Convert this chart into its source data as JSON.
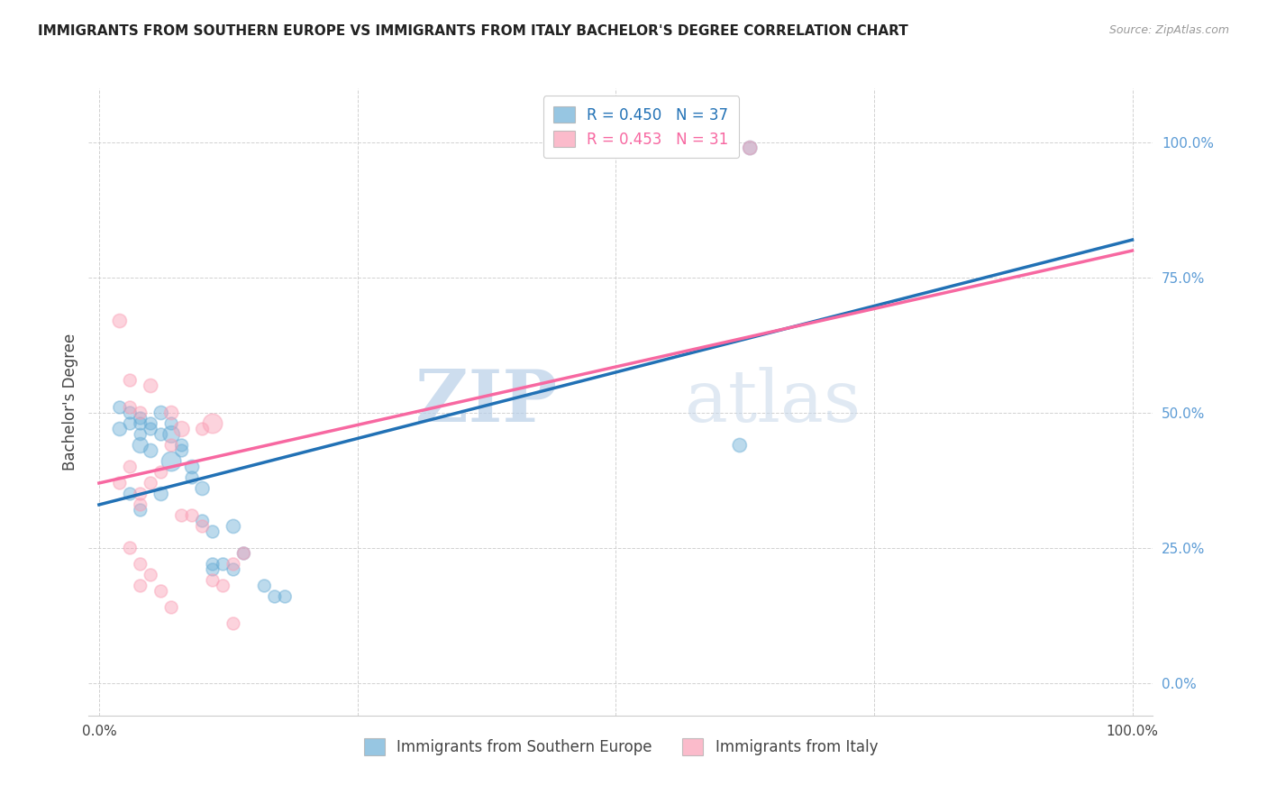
{
  "title": "IMMIGRANTS FROM SOUTHERN EUROPE VS IMMIGRANTS FROM ITALY BACHELOR'S DEGREE CORRELATION CHART",
  "source": "Source: ZipAtlas.com",
  "ylabel": "Bachelor's Degree",
  "ytick_labels": [
    "0.0%",
    "25.0%",
    "50.0%",
    "75.0%",
    "100.0%"
  ],
  "ytick_values": [
    0,
    25,
    50,
    75,
    100
  ],
  "xtick_values": [
    0,
    25,
    50,
    75,
    100
  ],
  "blue_color": "#6baed6",
  "pink_color": "#fa9fb5",
  "blue_line_color": "#2171b5",
  "pink_line_color": "#f768a1",
  "legend_blue_label": "Immigrants from Southern Europe",
  "legend_pink_label": "Immigrants from Italy",
  "watermark_zip": "ZIP",
  "watermark_atlas": "atlas",
  "blue_scatter_x": [
    2,
    5,
    4,
    6,
    4,
    8,
    7,
    5,
    6,
    7,
    9,
    10,
    11,
    13,
    12,
    11,
    13,
    14,
    16,
    17,
    18,
    2,
    3,
    3,
    4,
    4,
    5,
    6,
    7,
    8,
    9,
    10,
    11,
    62,
    63,
    3,
    4
  ],
  "blue_scatter_y": [
    47,
    48,
    46,
    50,
    44,
    44,
    46,
    43,
    35,
    41,
    40,
    36,
    28,
    29,
    22,
    22,
    21,
    24,
    18,
    16,
    16,
    51,
    50,
    48,
    49,
    48,
    47,
    46,
    48,
    43,
    38,
    30,
    21,
    44,
    99,
    35,
    32
  ],
  "blue_scatter_size": [
    120,
    100,
    90,
    120,
    150,
    100,
    180,
    120,
    120,
    240,
    120,
    120,
    100,
    120,
    100,
    100,
    100,
    100,
    100,
    100,
    100,
    100,
    100,
    100,
    100,
    100,
    100,
    100,
    100,
    100,
    100,
    100,
    100,
    120,
    120,
    100,
    100
  ],
  "pink_scatter_x": [
    2,
    3,
    5,
    7,
    8,
    10,
    11,
    13,
    14,
    2,
    3,
    4,
    4,
    5,
    6,
    7,
    8,
    9,
    10,
    11,
    12,
    13,
    3,
    4,
    5,
    4,
    6,
    7,
    63,
    3,
    4
  ],
  "pink_scatter_y": [
    67,
    56,
    55,
    50,
    47,
    47,
    48,
    22,
    24,
    37,
    40,
    35,
    33,
    37,
    39,
    44,
    31,
    31,
    29,
    19,
    18,
    11,
    25,
    22,
    20,
    18,
    17,
    14,
    99,
    51,
    50
  ],
  "pink_scatter_size": [
    120,
    100,
    120,
    120,
    150,
    100,
    240,
    100,
    100,
    100,
    100,
    100,
    100,
    100,
    100,
    100,
    100,
    100,
    100,
    100,
    100,
    100,
    100,
    100,
    100,
    100,
    100,
    100,
    120,
    100,
    100
  ],
  "blue_line_x": [
    0,
    100
  ],
  "blue_line_y": [
    33,
    82
  ],
  "pink_line_x": [
    0,
    100
  ],
  "pink_line_y": [
    37,
    80
  ]
}
